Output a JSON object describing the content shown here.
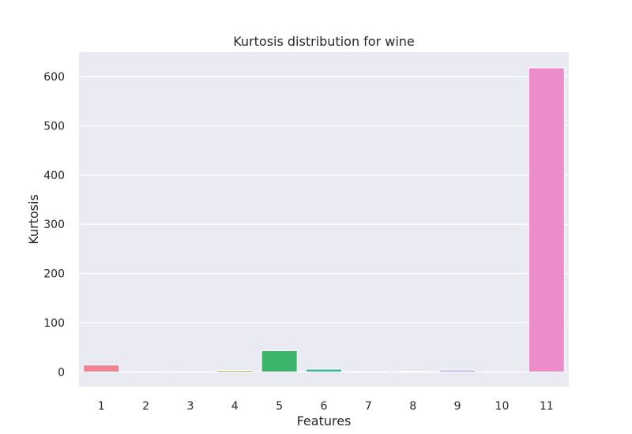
{
  "chart_data": {
    "type": "bar",
    "title": "Kurtosis distribution for wine",
    "xlabel": "Features",
    "ylabel": "Kurtosis",
    "categories": [
      "1",
      "2",
      "3",
      "4",
      "5",
      "6",
      "7",
      "8",
      "9",
      "10",
      "11"
    ],
    "values": [
      14.0,
      0.5,
      0.4,
      3.0,
      43.0,
      5.5,
      0.4,
      1.0,
      3.5,
      0.8,
      618.0
    ],
    "colors": [
      "#f0818f",
      "#d9a055",
      "#b5b048",
      "#8eb541",
      "#3ab56a",
      "#3cb5a0",
      "#39b2be",
      "#4aa9d6",
      "#9d9ff0",
      "#d98be9",
      "#ec8ccb"
    ],
    "yticks": [
      0,
      100,
      200,
      300,
      400,
      500,
      600
    ],
    "ylim": [
      -30,
      650
    ],
    "grid": true,
    "background": "#eaeaf2"
  }
}
